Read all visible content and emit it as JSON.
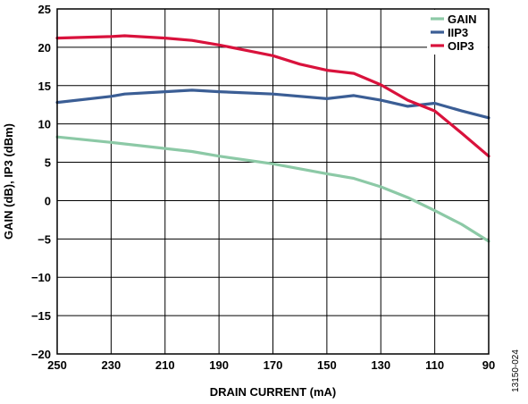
{
  "chart_data": {
    "type": "line",
    "xlabel": "DRAIN CURRENT (mA)",
    "ylabel": "GAIN (dB), IP3 (dBm)",
    "xlim": [
      250,
      90
    ],
    "x_reversed": true,
    "ylim": [
      -20,
      25
    ],
    "xticks": [
      250,
      230,
      210,
      190,
      170,
      150,
      130,
      110,
      90
    ],
    "yticks": [
      25,
      20,
      15,
      10,
      5,
      0,
      -5,
      -10,
      -15,
      -20
    ],
    "ytick_labels": [
      "25",
      "20",
      "15",
      "10",
      "5",
      "0",
      "−5",
      "−10",
      "−15",
      "−20"
    ],
    "grid": true,
    "legend_position": "top-right",
    "series": [
      {
        "name": "GAIN",
        "color": "#8cc9a6",
        "x": [
          250,
          230,
          210,
          200,
          190,
          170,
          150,
          140,
          130,
          120,
          110,
          100,
          90
        ],
        "y": [
          8.3,
          7.6,
          6.8,
          6.4,
          5.8,
          4.8,
          3.5,
          2.9,
          1.8,
          0.4,
          -1.3,
          -3.1,
          -5.3
        ]
      },
      {
        "name": "IIP3",
        "color": "#3b5e95",
        "x": [
          250,
          230,
          225,
          210,
          200,
          190,
          170,
          150,
          140,
          130,
          120,
          110,
          100,
          90
        ],
        "y": [
          12.8,
          13.6,
          13.9,
          14.2,
          14.4,
          14.2,
          13.9,
          13.3,
          13.7,
          13.1,
          12.3,
          12.7,
          11.7,
          10.8
        ]
      },
      {
        "name": "OIP3",
        "color": "#d9123c",
        "x": [
          250,
          230,
          225,
          210,
          200,
          190,
          180,
          170,
          160,
          150,
          140,
          130,
          120,
          110,
          100,
          90
        ],
        "y": [
          21.2,
          21.4,
          21.5,
          21.2,
          20.9,
          20.3,
          19.6,
          18.9,
          17.8,
          17.0,
          16.6,
          15.1,
          13.1,
          11.7,
          8.8,
          5.8
        ]
      }
    ]
  },
  "figure_code": "13150-024"
}
